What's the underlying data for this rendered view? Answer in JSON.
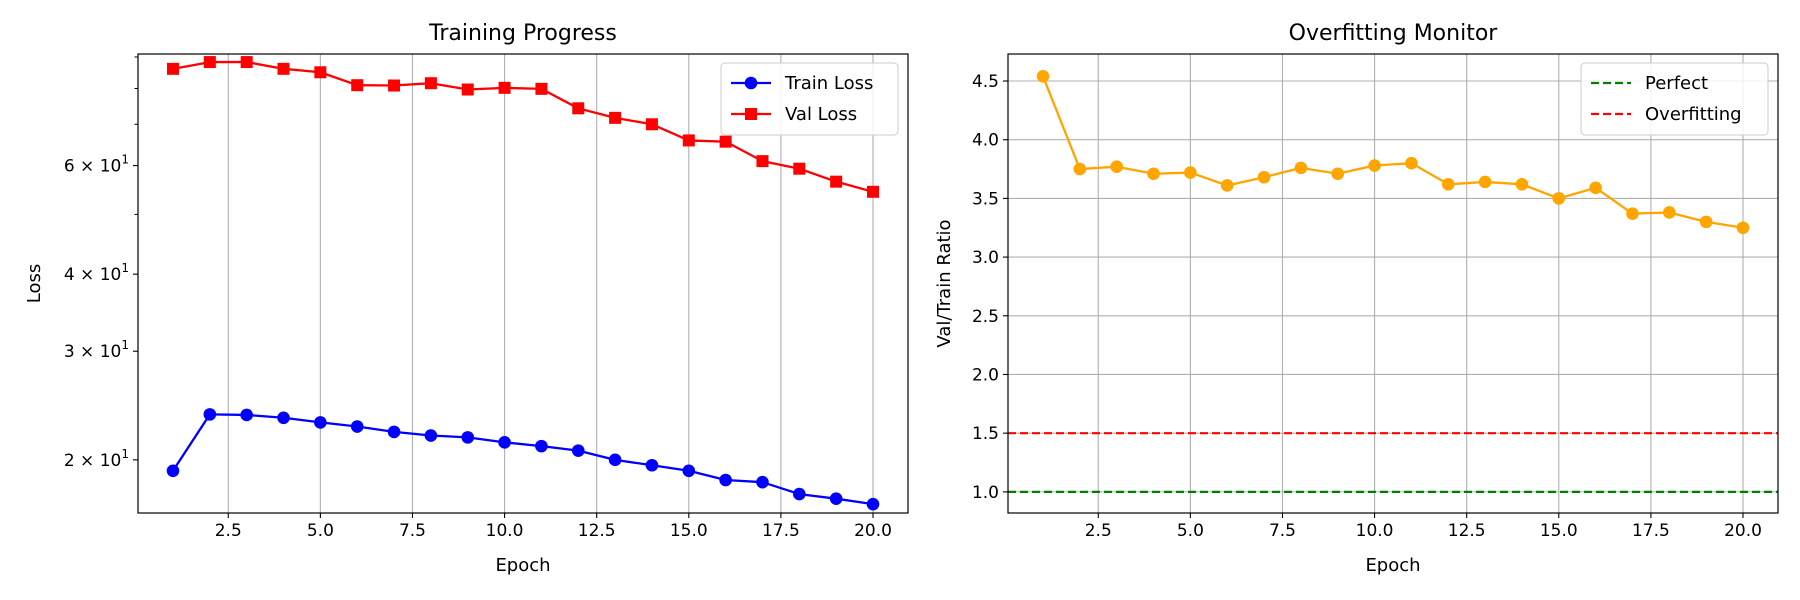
{
  "chart_data": [
    {
      "type": "line",
      "title": "Training Progress",
      "xlabel": "Epoch",
      "ylabel": "Loss",
      "yscale": "log",
      "grid": "x-major",
      "legend_position": "top-right",
      "xlim": [
        0.05,
        20.95
      ],
      "ylim": [
        16.4,
        91
      ],
      "xticks": [
        "2.5",
        "5.0",
        "7.5",
        "10.0",
        "12.5",
        "15.0",
        "17.5",
        "20.0"
      ],
      "yticks": [
        {
          "value": 20,
          "base": "2",
          "mant": "10",
          "exp": "1"
        },
        {
          "value": 30,
          "base": "3",
          "mant": "10",
          "exp": "1"
        },
        {
          "value": 40,
          "base": "4",
          "mant": "10",
          "exp": "1"
        },
        {
          "value": 60,
          "base": "6",
          "mant": "10",
          "exp": "1"
        }
      ],
      "x": [
        1,
        2,
        3,
        4,
        5,
        6,
        7,
        8,
        9,
        10,
        11,
        12,
        13,
        14,
        15,
        16,
        17,
        18,
        19,
        20
      ],
      "series": [
        {
          "name": "Train Loss",
          "color": "#0000ff",
          "marker": "circle",
          "values": [
            19.2,
            23.7,
            23.65,
            23.4,
            23.0,
            22.65,
            22.2,
            21.9,
            21.75,
            21.35,
            21.05,
            20.7,
            20.0,
            19.6,
            19.2,
            18.55,
            18.4,
            17.6,
            17.3,
            16.95
          ]
        },
        {
          "name": "Val Loss",
          "color": "#ff0000",
          "marker": "square",
          "values": [
            86.1,
            88.3,
            88.3,
            86.1,
            85.0,
            81.0,
            80.9,
            81.6,
            79.7,
            80.2,
            79.9,
            74.3,
            71.7,
            70.0,
            65.9,
            65.6,
            61.0,
            59.3,
            56.5,
            54.4
          ]
        }
      ]
    },
    {
      "type": "line",
      "title": "Overfitting Monitor",
      "xlabel": "Epoch",
      "ylabel": "Val/Train Ratio",
      "grid": "both",
      "legend_position": "top-right",
      "xlim": [
        0.05,
        20.95
      ],
      "ylim": [
        0.82,
        4.73
      ],
      "xticks": [
        "2.5",
        "5.0",
        "7.5",
        "10.0",
        "12.5",
        "15.0",
        "17.5",
        "20.0"
      ],
      "yticks": [
        "1.0",
        "1.5",
        "2.0",
        "2.5",
        "3.0",
        "3.5",
        "4.0",
        "4.5"
      ],
      "x": [
        1,
        2,
        3,
        4,
        5,
        6,
        7,
        8,
        9,
        10,
        11,
        12,
        13,
        14,
        15,
        16,
        17,
        18,
        19,
        20
      ],
      "series": [
        {
          "color": "#ffa500",
          "marker": "circle",
          "values": [
            4.54,
            3.75,
            3.77,
            3.71,
            3.72,
            3.61,
            3.68,
            3.76,
            3.71,
            3.78,
            3.8,
            3.62,
            3.64,
            3.62,
            3.5,
            3.59,
            3.37,
            3.38,
            3.3,
            3.25
          ]
        }
      ],
      "hlines": [
        {
          "name": "Perfect",
          "value": 1.0,
          "color": "#008000",
          "style": "dashed"
        },
        {
          "name": "Overfitting",
          "value": 1.5,
          "color": "#ff0000",
          "style": "dashed"
        }
      ]
    }
  ]
}
